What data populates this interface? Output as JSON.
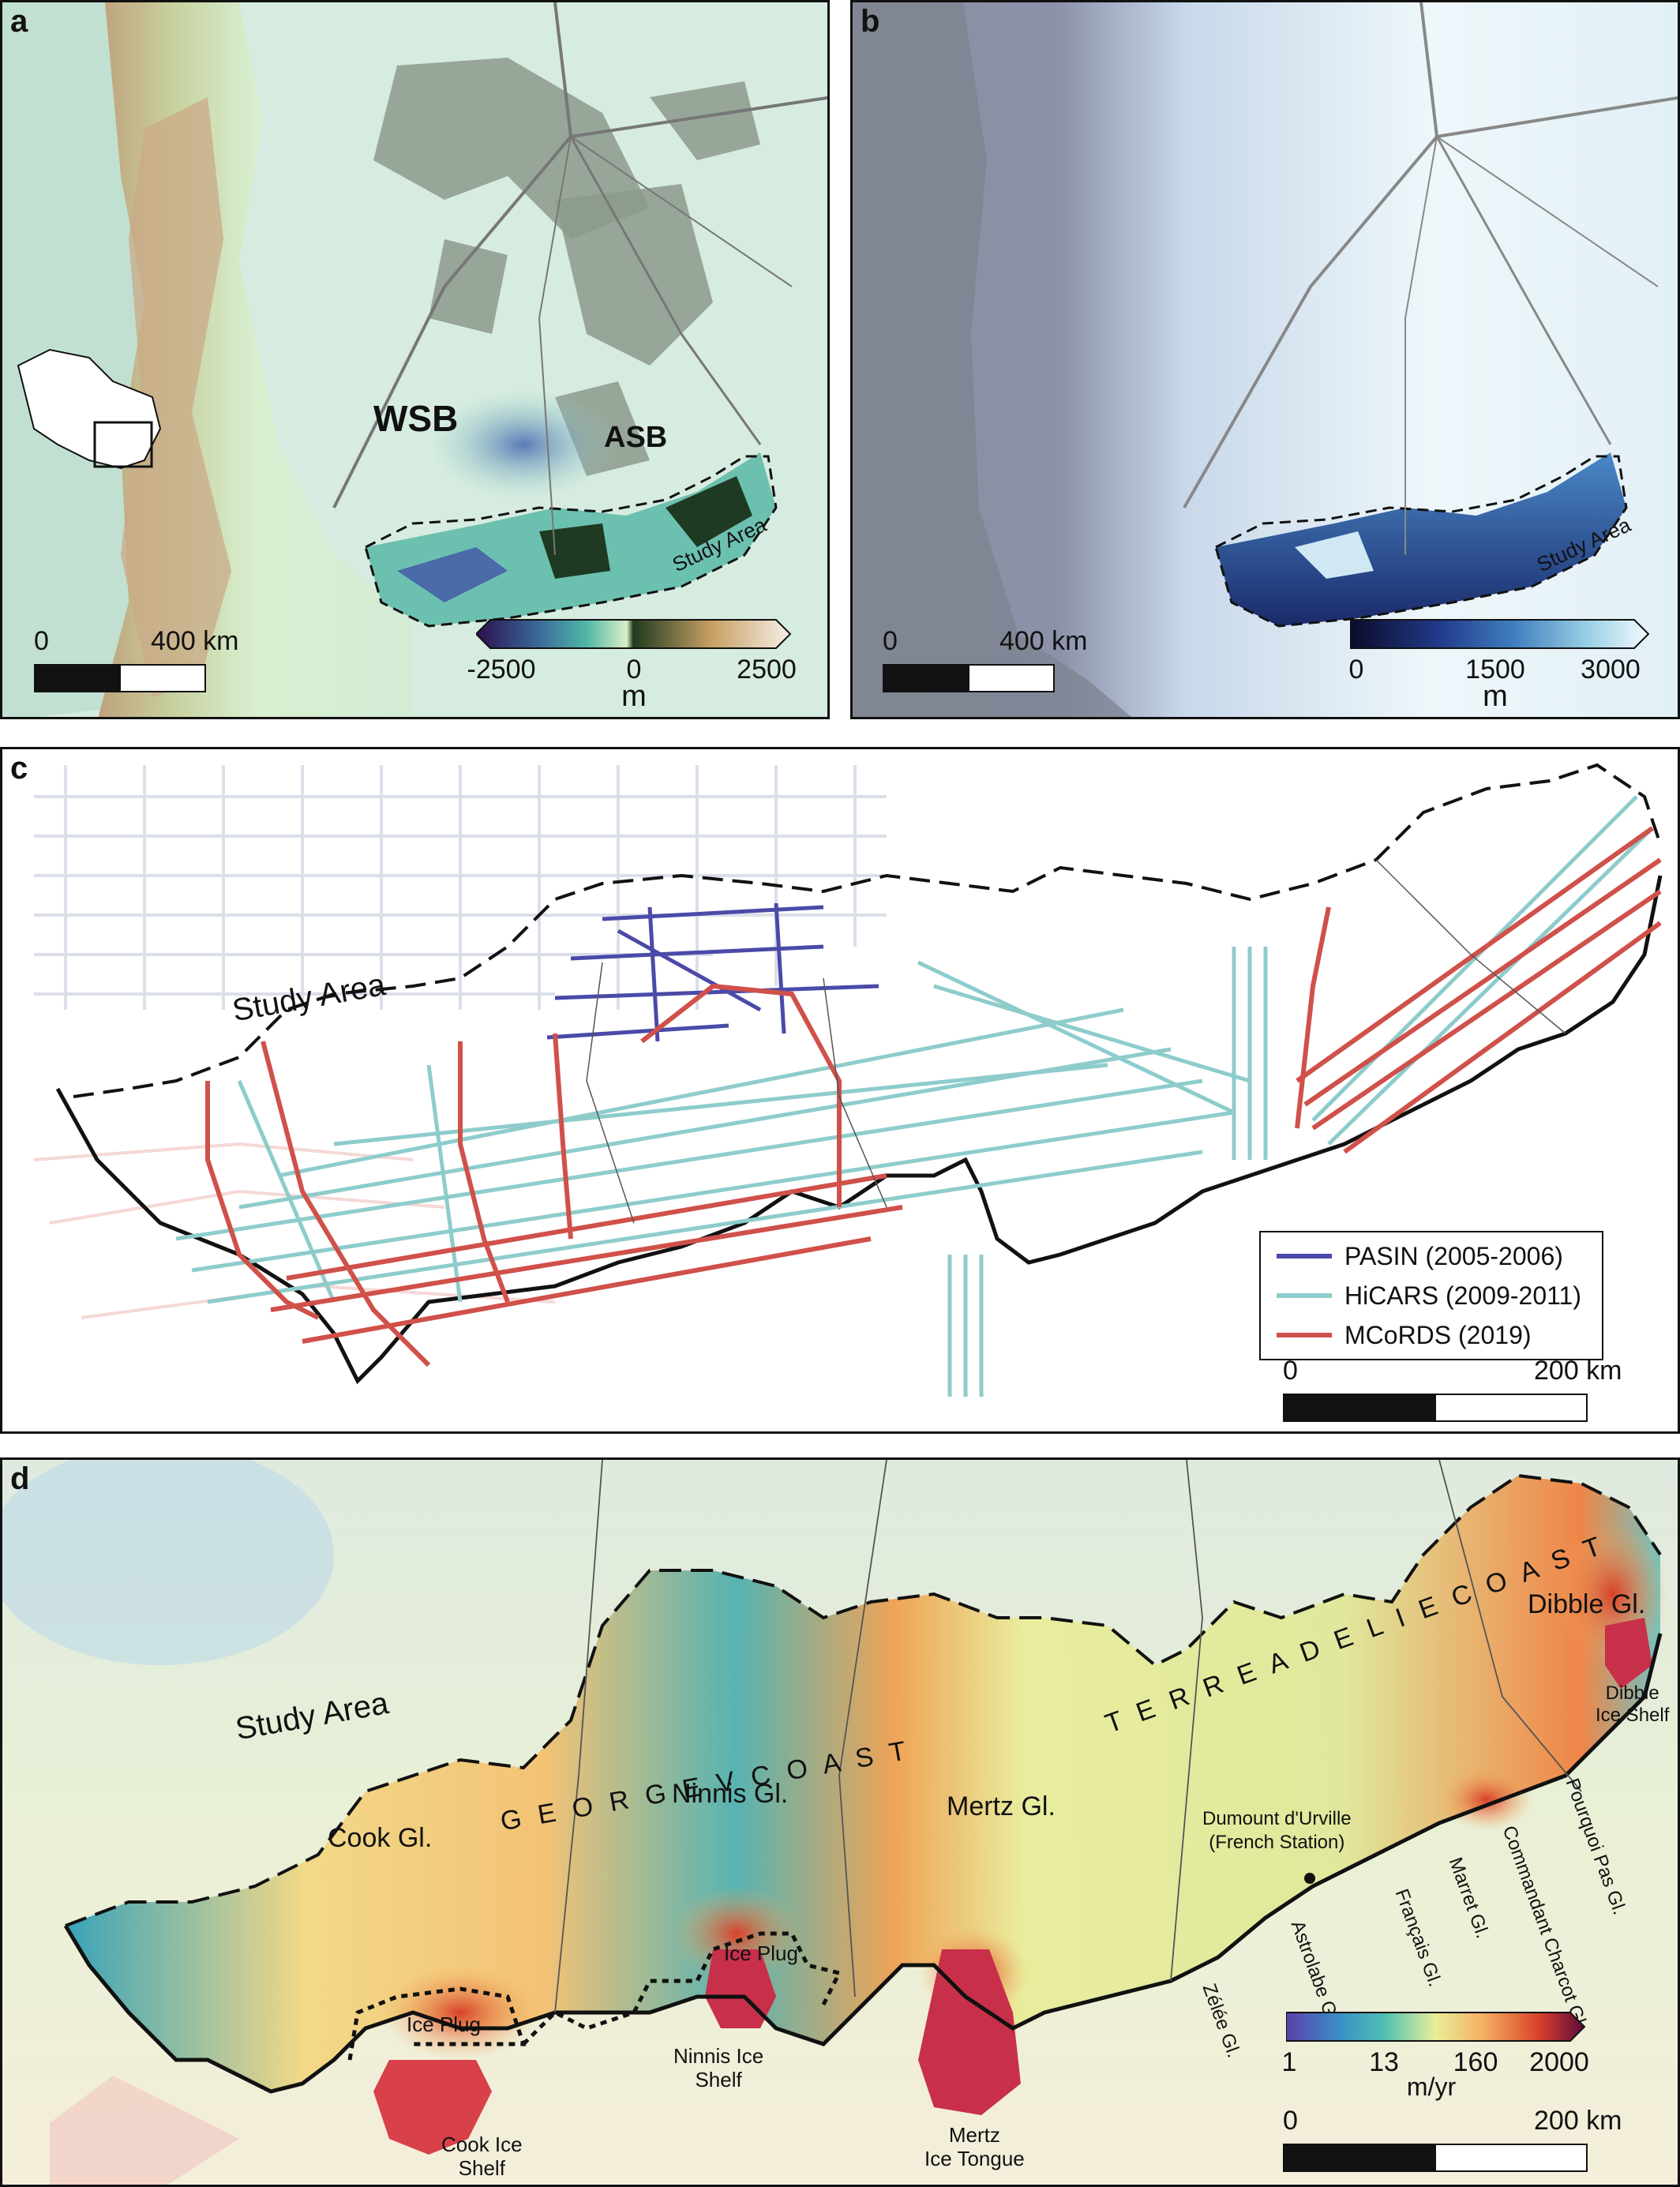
{
  "panels": {
    "a": {
      "label": "a",
      "regions": [
        "WSB",
        "ASB"
      ],
      "study_area": "Study Area",
      "scale": {
        "zero": "0",
        "end": "400 km"
      },
      "colorbar": {
        "ticks": [
          "-2500",
          "0",
          "2500"
        ],
        "unit": "m",
        "colors": [
          "#2a0f4e",
          "#3a6a9a",
          "#4fb6a6",
          "#d9efc6",
          "#1f3a1e",
          "#c8a064",
          "#f5efe6"
        ]
      }
    },
    "b": {
      "label": "b",
      "study_area": "Study Area",
      "scale": {
        "zero": "0",
        "end": "400 km"
      },
      "colorbar": {
        "ticks": [
          "0",
          "1500",
          "3000"
        ],
        "unit": "m",
        "colors": [
          "#0b0b2a",
          "#223a8a",
          "#3f7fc0",
          "#9bd0e6",
          "#f3fbfd"
        ]
      }
    },
    "c": {
      "label": "c",
      "study_area": "Study Area",
      "legend": [
        {
          "name": "PASIN (2005-2006)",
          "color": "#4a4aa8"
        },
        {
          "name": "HiCARS (2009-2011)",
          "color": "#8ecccc"
        },
        {
          "name": "MCoRDS (2019)",
          "color": "#d0504a"
        }
      ],
      "scale": {
        "zero": "0",
        "end": "200 km"
      }
    },
    "d": {
      "label": "d",
      "study_area": "Study Area",
      "coasts": {
        "george_v": "G E O R G E   V   C O A S T",
        "terre_adelie": "T E R R E   A D E L I E   C O A S T"
      },
      "glaciers": {
        "cook": "Cook Gl.",
        "ninnis": "Ninnis Gl.",
        "mertz": "Mertz Gl.",
        "dibble": "Dibble Gl.",
        "zelee": "Zélée Gl.",
        "astrolabe": "Astrolabe Gl.",
        "francais": "Français Gl.",
        "marret": "Marret Gl.",
        "charcot": "Commandant Charcot Gl.",
        "pourquoi": "Pourquoi Pas Gl."
      },
      "station": {
        "line1": "Dumount d'Urville",
        "line2": "(French Station)"
      },
      "ice_plug_1": "Ice Plug",
      "ice_plug_2": "Ice Plug",
      "cook_shelf": {
        "line1": "Cook Ice",
        "line2": "Shelf"
      },
      "ninnis_shelf": {
        "line1": "Ninnis Ice",
        "line2": "Shelf"
      },
      "mertz_tongue": {
        "line1": "Mertz",
        "line2": "Ice Tongue"
      },
      "dibble_shelf": {
        "line1": "Dibble",
        "line2": "Ice Shelf"
      },
      "colorbar": {
        "ticks": [
          "1",
          "13",
          "160",
          "2000"
        ],
        "unit": "m/yr",
        "colors": [
          "#5b3fa8",
          "#3a8fc8",
          "#4fc0b0",
          "#e8ee9a",
          "#f4b060",
          "#d8402a",
          "#5a0a3a"
        ]
      },
      "scale": {
        "zero": "0",
        "end": "200 km"
      }
    }
  }
}
